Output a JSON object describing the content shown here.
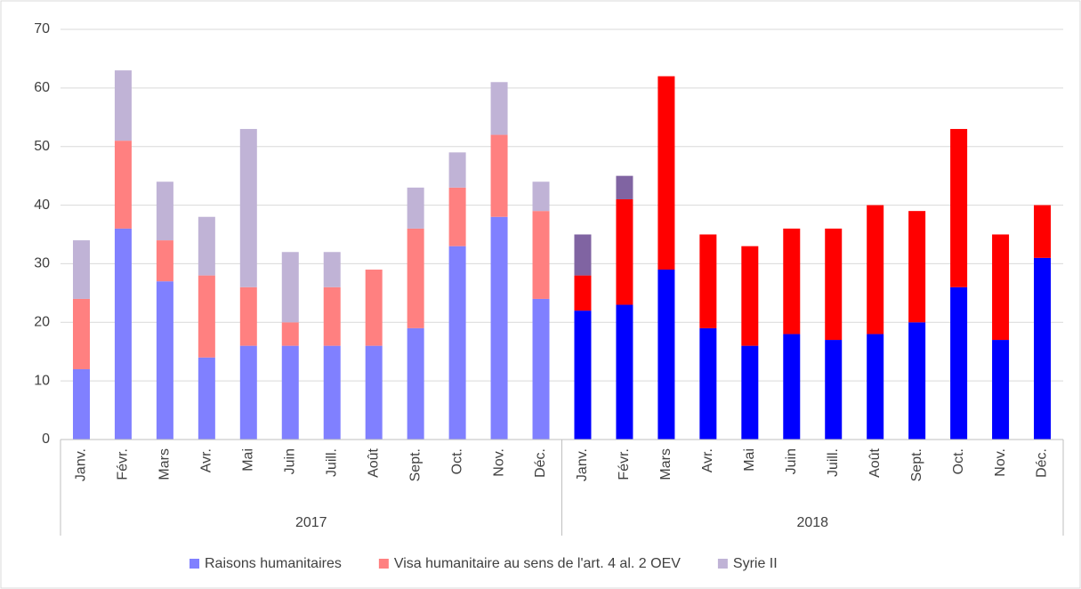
{
  "chart_data": {
    "type": "stacked_bar",
    "categories": [
      "Janv.",
      "Févr.",
      "Mars",
      "Avr.",
      "Mai",
      "Juin",
      "Juill.",
      "Août",
      "Sept.",
      "Oct.",
      "Nov.",
      "Déc.",
      "Janv.",
      "Févr.",
      "Mars",
      "Avr.",
      "Mai",
      "Juin",
      "Juill.",
      "Août",
      "Sept.",
      "Oct.",
      "Nov.",
      "Déc."
    ],
    "groups": [
      {
        "label": "2017",
        "count": 12,
        "colors": [
          "#8080ff",
          "#ff8080",
          "#c0b3d6"
        ]
      },
      {
        "label": "2018",
        "count": 12,
        "colors": [
          "#0000ff",
          "#ff0000",
          "#8064a2"
        ]
      }
    ],
    "series": [
      {
        "name": "Raisons humanitaires",
        "color": "#8080ff",
        "values": [
          12,
          36,
          27,
          14,
          16,
          16,
          16,
          16,
          19,
          33,
          38,
          24,
          22,
          23,
          29,
          19,
          16,
          18,
          17,
          18,
          20,
          26,
          17,
          31
        ]
      },
      {
        "name": "Visa humanitaire au sens de l'art. 4 al. 2 OEV",
        "color": "#ff8080",
        "values": [
          12,
          15,
          7,
          14,
          10,
          4,
          10,
          13,
          17,
          10,
          14,
          15,
          6,
          18,
          33,
          16,
          17,
          18,
          19,
          22,
          19,
          27,
          18,
          9
        ]
      },
      {
        "name": "Syrie II",
        "color": "#c0b3d6",
        "values": [
          10,
          12,
          10,
          10,
          27,
          12,
          6,
          0,
          7,
          6,
          9,
          5,
          7,
          4,
          0,
          0,
          0,
          0,
          0,
          0,
          0,
          0,
          0,
          0
        ]
      }
    ],
    "ylim": [
      0,
      70
    ],
    "yticks": [
      0,
      10,
      20,
      30,
      40,
      50,
      60,
      70
    ],
    "grid": true,
    "legend": "bottom"
  }
}
